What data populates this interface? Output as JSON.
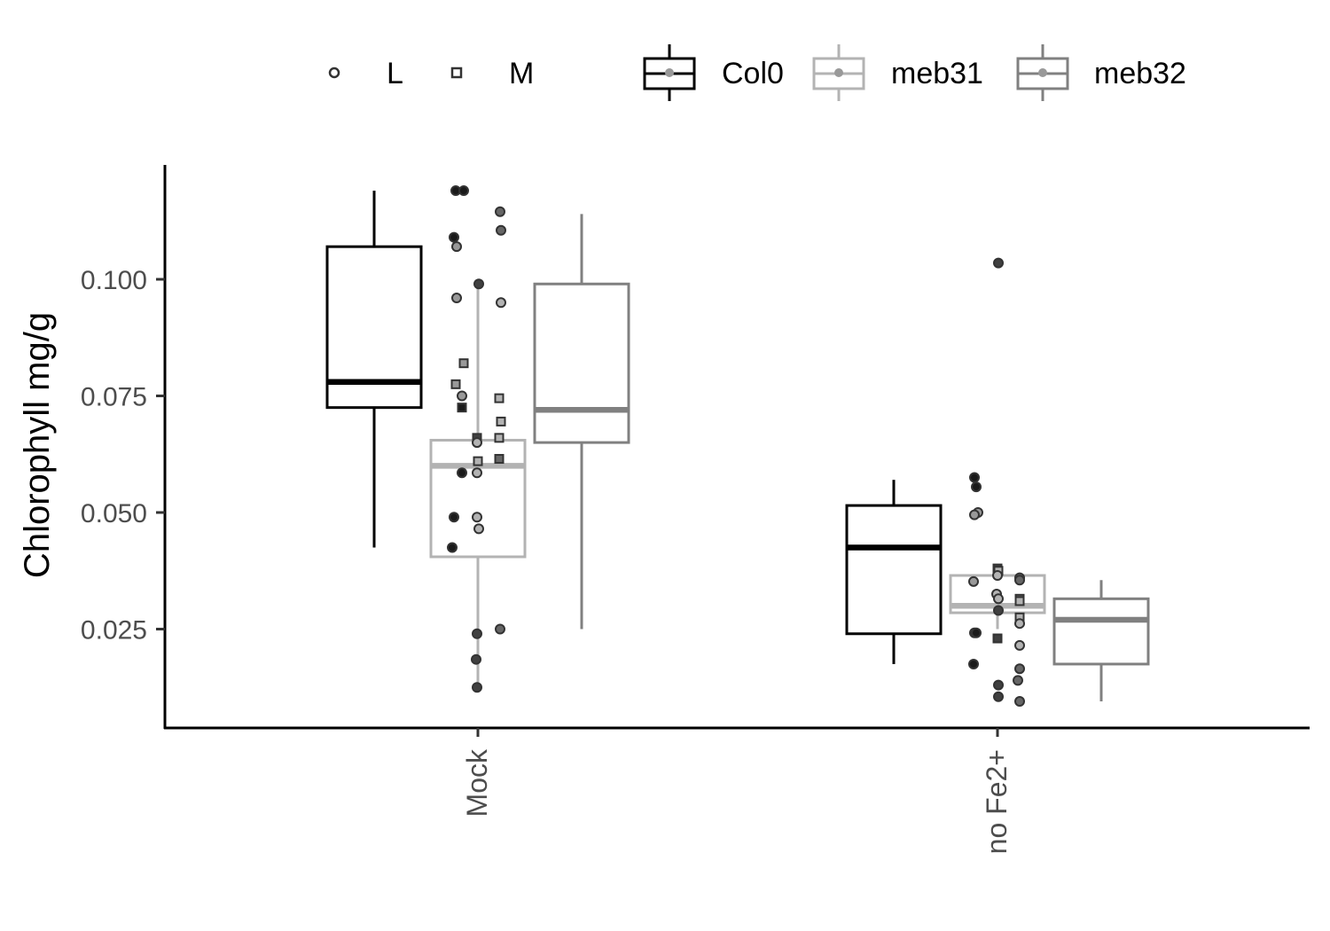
{
  "chart_data": {
    "type": "box",
    "ylabel": "Chlorophyll mg/g",
    "xlabel": "",
    "categories": [
      "Mock",
      "no Fe2+"
    ],
    "ylim": [
      0.004,
      0.125
    ],
    "yticks": [
      0.025,
      0.05,
      0.075,
      0.1
    ],
    "ytick_labels": [
      "0.025",
      "0.050",
      "0.075",
      "0.100"
    ],
    "grid": false,
    "legend_position": "top",
    "shape_legend": {
      "items": [
        {
          "label": "L",
          "shape": "circle"
        },
        {
          "label": "M",
          "shape": "square"
        }
      ]
    },
    "color_legend": {
      "items": [
        {
          "label": "Col0",
          "color": "#000000"
        },
        {
          "label": "meb31",
          "color": "#b3b3b3"
        },
        {
          "label": "meb32",
          "color": "#808080"
        }
      ]
    },
    "series": [
      {
        "name": "Col0",
        "color": "#000000",
        "boxes": [
          {
            "category": "Mock",
            "lower_whisker": 0.0425,
            "q1": 0.0725,
            "median": 0.078,
            "q3": 0.107,
            "upper_whisker": 0.119
          },
          {
            "category": "no Fe2+",
            "lower_whisker": 0.0175,
            "q1": 0.024,
            "median": 0.0425,
            "q3": 0.0515,
            "upper_whisker": 0.057
          }
        ],
        "points": [
          {
            "category": "Mock",
            "y": 0.119,
            "shape": "circle",
            "fill": "#1a1a1a",
            "jitter": -0.25
          },
          {
            "category": "Mock",
            "y": 0.119,
            "shape": "circle",
            "fill": "#1a1a1a",
            "jitter": -0.16
          },
          {
            "category": "Mock",
            "y": 0.109,
            "shape": "circle",
            "fill": "#1a1a1a",
            "jitter": -0.27
          },
          {
            "category": "Mock",
            "y": 0.107,
            "shape": "circle",
            "fill": "#999999",
            "jitter": -0.24
          },
          {
            "category": "Mock",
            "y": 0.096,
            "shape": "circle",
            "fill": "#999999",
            "jitter": -0.24
          },
          {
            "category": "Mock",
            "y": 0.082,
            "shape": "square",
            "fill": "#999999",
            "jitter": -0.16
          },
          {
            "category": "Mock",
            "y": 0.0775,
            "shape": "square",
            "fill": "#999999",
            "jitter": -0.25
          },
          {
            "category": "Mock",
            "y": 0.075,
            "shape": "circle",
            "fill": "#999999",
            "jitter": -0.18
          },
          {
            "category": "Mock",
            "y": 0.0725,
            "shape": "square",
            "fill": "#1a1a1a",
            "jitter": -0.18
          },
          {
            "category": "Mock",
            "y": 0.0585,
            "shape": "circle",
            "fill": "#1a1a1a",
            "jitter": -0.18
          },
          {
            "category": "Mock",
            "y": 0.049,
            "shape": "circle",
            "fill": "#1a1a1a",
            "jitter": -0.27
          },
          {
            "category": "Mock",
            "y": 0.0425,
            "shape": "circle",
            "fill": "#1a1a1a",
            "jitter": -0.29
          },
          {
            "category": "no Fe2+",
            "y": 0.0575,
            "shape": "circle",
            "fill": "#1a1a1a",
            "jitter": -0.26
          },
          {
            "category": "no Fe2+",
            "y": 0.0555,
            "shape": "circle",
            "fill": "#1a1a1a",
            "jitter": -0.24
          },
          {
            "category": "no Fe2+",
            "y": 0.05,
            "shape": "circle",
            "fill": "#999999",
            "jitter": -0.22
          },
          {
            "category": "no Fe2+",
            "y": 0.0495,
            "shape": "circle",
            "fill": "#999999",
            "jitter": -0.26
          },
          {
            "category": "no Fe2+",
            "y": 0.0352,
            "shape": "circle",
            "fill": "#999999",
            "jitter": -0.27
          },
          {
            "category": "no Fe2+",
            "y": 0.0242,
            "shape": "circle",
            "fill": "#1a1a1a",
            "jitter": -0.26
          },
          {
            "category": "no Fe2+",
            "y": 0.0242,
            "shape": "circle",
            "fill": "#1a1a1a",
            "jitter": -0.24
          },
          {
            "category": "no Fe2+",
            "y": 0.0175,
            "shape": "circle",
            "fill": "#1a1a1a",
            "jitter": -0.27
          }
        ]
      },
      {
        "name": "meb31",
        "color": "#b3b3b3",
        "boxes": [
          {
            "category": "Mock",
            "lower_whisker": 0.0125,
            "q1": 0.0405,
            "median": 0.06,
            "q3": 0.0655,
            "upper_whisker": 0.099
          },
          {
            "category": "no Fe2+",
            "lower_whisker": 0.025,
            "q1": 0.0285,
            "median": 0.03,
            "q3": 0.0365,
            "upper_whisker": 0.038
          }
        ],
        "points": [
          {
            "category": "Mock",
            "y": 0.099,
            "shape": "circle",
            "fill": "#404040",
            "jitter": 0.01
          },
          {
            "category": "Mock",
            "y": 0.066,
            "shape": "square",
            "fill": "#404040",
            "jitter": -0.01
          },
          {
            "category": "Mock",
            "y": 0.065,
            "shape": "circle",
            "fill": "#b3b3b3",
            "jitter": -0.01
          },
          {
            "category": "Mock",
            "y": 0.061,
            "shape": "square",
            "fill": "#b3b3b3",
            "jitter": 0.0
          },
          {
            "category": "Mock",
            "y": 0.0585,
            "shape": "circle",
            "fill": "#b3b3b3",
            "jitter": -0.01
          },
          {
            "category": "Mock",
            "y": 0.049,
            "shape": "circle",
            "fill": "#b3b3b3",
            "jitter": -0.01
          },
          {
            "category": "Mock",
            "y": 0.0465,
            "shape": "circle",
            "fill": "#b3b3b3",
            "jitter": 0.01
          },
          {
            "category": "Mock",
            "y": 0.024,
            "shape": "circle",
            "fill": "#404040",
            "jitter": -0.01
          },
          {
            "category": "Mock",
            "y": 0.0185,
            "shape": "circle",
            "fill": "#404040",
            "jitter": -0.02
          },
          {
            "category": "Mock",
            "y": 0.0125,
            "shape": "circle",
            "fill": "#404040",
            "jitter": -0.01
          },
          {
            "category": "no Fe2+",
            "y": 0.1035,
            "shape": "circle",
            "fill": "#404040",
            "jitter": 0.01
          },
          {
            "category": "no Fe2+",
            "y": 0.038,
            "shape": "square",
            "fill": "#404040",
            "jitter": 0.0
          },
          {
            "category": "no Fe2+",
            "y": 0.0375,
            "shape": "square",
            "fill": "#b3b3b3",
            "jitter": 0.01
          },
          {
            "category": "no Fe2+",
            "y": 0.0365,
            "shape": "circle",
            "fill": "#b3b3b3",
            "jitter": 0.0
          },
          {
            "category": "no Fe2+",
            "y": 0.0325,
            "shape": "circle",
            "fill": "#b3b3b3",
            "jitter": -0.01
          },
          {
            "category": "no Fe2+",
            "y": 0.0315,
            "shape": "circle",
            "fill": "#b3b3b3",
            "jitter": 0.01
          },
          {
            "category": "no Fe2+",
            "y": 0.029,
            "shape": "circle",
            "fill": "#404040",
            "jitter": 0.01
          },
          {
            "category": "no Fe2+",
            "y": 0.023,
            "shape": "square",
            "fill": "#404040",
            "jitter": 0.0
          },
          {
            "category": "no Fe2+",
            "y": 0.013,
            "shape": "circle",
            "fill": "#404040",
            "jitter": 0.01
          },
          {
            "category": "no Fe2+",
            "y": 0.0105,
            "shape": "circle",
            "fill": "#404040",
            "jitter": 0.01
          }
        ]
      },
      {
        "name": "meb32",
        "color": "#808080",
        "boxes": [
          {
            "category": "Mock",
            "lower_whisker": 0.025,
            "q1": 0.065,
            "median": 0.072,
            "q3": 0.099,
            "upper_whisker": 0.114
          },
          {
            "category": "no Fe2+",
            "lower_whisker": 0.0095,
            "q1": 0.0175,
            "median": 0.027,
            "q3": 0.0315,
            "upper_whisker": 0.0355
          }
        ],
        "points": [
          {
            "category": "Mock",
            "y": 0.1145,
            "shape": "circle",
            "fill": "#666666",
            "jitter": 0.25
          },
          {
            "category": "Mock",
            "y": 0.1105,
            "shape": "circle",
            "fill": "#666666",
            "jitter": 0.26
          },
          {
            "category": "Mock",
            "y": 0.095,
            "shape": "circle",
            "fill": "#b3b3b3",
            "jitter": 0.26
          },
          {
            "category": "Mock",
            "y": 0.0745,
            "shape": "square",
            "fill": "#b3b3b3",
            "jitter": 0.24
          },
          {
            "category": "Mock",
            "y": 0.0695,
            "shape": "square",
            "fill": "#b3b3b3",
            "jitter": 0.26
          },
          {
            "category": "Mock",
            "y": 0.066,
            "shape": "square",
            "fill": "#b3b3b3",
            "jitter": 0.24
          },
          {
            "category": "Mock",
            "y": 0.0615,
            "shape": "square",
            "fill": "#666666",
            "jitter": 0.24
          },
          {
            "category": "Mock",
            "y": 0.025,
            "shape": "circle",
            "fill": "#666666",
            "jitter": 0.25
          },
          {
            "category": "no Fe2+",
            "y": 0.036,
            "shape": "circle",
            "fill": "#666666",
            "jitter": 0.25
          },
          {
            "category": "no Fe2+",
            "y": 0.0355,
            "shape": "circle",
            "fill": "#666666",
            "jitter": 0.25
          },
          {
            "category": "no Fe2+",
            "y": 0.0315,
            "shape": "square",
            "fill": "#666666",
            "jitter": 0.25
          },
          {
            "category": "no Fe2+",
            "y": 0.031,
            "shape": "square",
            "fill": "#b3b3b3",
            "jitter": 0.25
          },
          {
            "category": "no Fe2+",
            "y": 0.0275,
            "shape": "square",
            "fill": "#b3b3b3",
            "jitter": 0.25
          },
          {
            "category": "no Fe2+",
            "y": 0.0262,
            "shape": "circle",
            "fill": "#b3b3b3",
            "jitter": 0.25
          },
          {
            "category": "no Fe2+",
            "y": 0.0215,
            "shape": "circle",
            "fill": "#b3b3b3",
            "jitter": 0.25
          },
          {
            "category": "no Fe2+",
            "y": 0.0165,
            "shape": "circle",
            "fill": "#666666",
            "jitter": 0.25
          },
          {
            "category": "no Fe2+",
            "y": 0.014,
            "shape": "circle",
            "fill": "#666666",
            "jitter": 0.23
          },
          {
            "category": "no Fe2+",
            "y": 0.0095,
            "shape": "circle",
            "fill": "#666666",
            "jitter": 0.25
          }
        ]
      }
    ]
  }
}
